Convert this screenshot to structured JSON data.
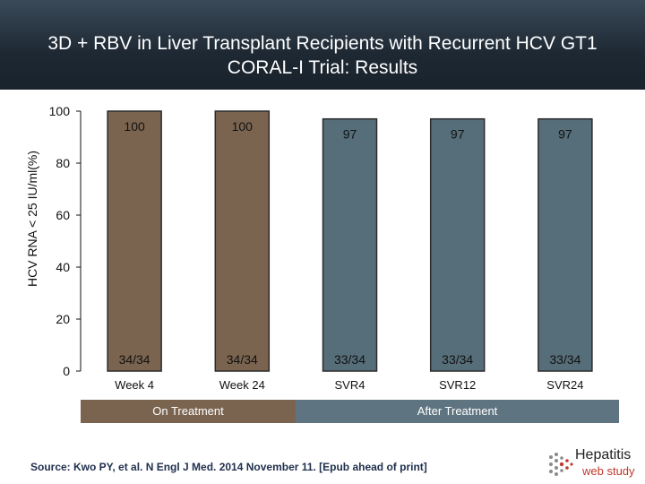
{
  "header": {
    "title_line1": "3D + RBV in Liver Transplant Recipients with Recurrent HCV GT1",
    "title_line2": "CORAL-I Trial: Results"
  },
  "chart_data": {
    "type": "bar",
    "title": "3D + RBV in Liver Transplant Recipients with Recurrent HCV GT1 CORAL-I Trial: Results",
    "ylabel": "HCV RNA < 25 IU/ml(%)",
    "xlabel": "",
    "ylim": [
      0,
      100
    ],
    "yticks": [
      0,
      20,
      40,
      60,
      80,
      100
    ],
    "categories": [
      "Week 4",
      "Week 24",
      "SVR4",
      "SVR12",
      "SVR24"
    ],
    "values": [
      100,
      100,
      97,
      97,
      97
    ],
    "value_labels": [
      "100",
      "100",
      "97",
      "97",
      "97"
    ],
    "fractions": [
      "34/34",
      "34/34",
      "33/34",
      "33/34",
      "33/34"
    ],
    "groups": [
      {
        "label": "On Treatment",
        "categories": [
          "Week 4",
          "Week 24"
        ],
        "color": "#7a6450"
      },
      {
        "label": "After Treatment",
        "categories": [
          "SVR4",
          "SVR12",
          "SVR24"
        ],
        "color": "#5e7480"
      }
    ],
    "bar_colors": [
      "#7a6450",
      "#7a6450",
      "#566e79",
      "#566e79",
      "#566e79"
    ],
    "grid": false
  },
  "footer": {
    "source": "Source: Kwo PY, et al. N Engl J Med. 2014 November 11. [Epub ahead of print]",
    "logo_line1": "Hepatitis",
    "logo_line2": "web study"
  }
}
